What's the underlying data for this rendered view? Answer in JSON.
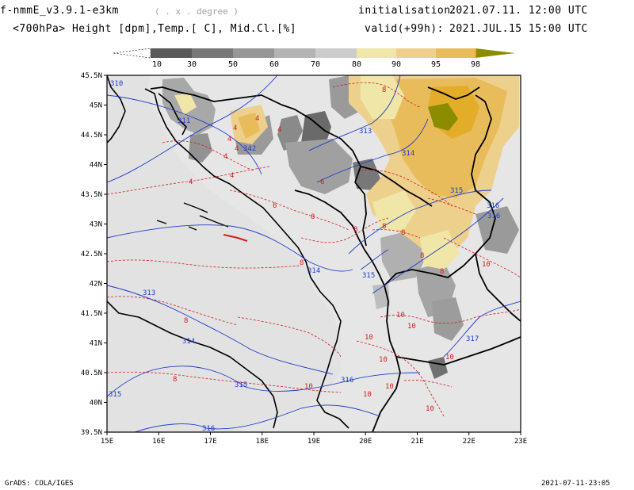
{
  "header": {
    "model": "f-nmmE_v3.9.1-e3km",
    "units_hint": "( . x . degree )",
    "init_label": "initialisation:",
    "init_value": "2021.07.11.  12:00 UTC",
    "subtitle": "<700hPa> Height [dpm],Temp.[ C], Mid.Cl.[%]",
    "valid_label": "valid(+99h):",
    "valid_value": "2021.JUL.15 15:00 UTC"
  },
  "colorbar": {
    "ticks": [
      "10",
      "30",
      "50",
      "60",
      "70",
      "80",
      "90",
      "95",
      "98"
    ],
    "colors": [
      "#5a5a5a",
      "#787878",
      "#969696",
      "#b4b4b4",
      "#cccccc",
      "#efe6a8",
      "#edd08c",
      "#e8bc5a",
      "#e3ad2a",
      "#8c8c00"
    ]
  },
  "axes": {
    "lat_labels": [
      "45.5N",
      "45N",
      "44.5N",
      "44N",
      "43.5N",
      "43N",
      "42.5N",
      "42N",
      "41.5N",
      "41N",
      "40.5N",
      "40N",
      "39.5N"
    ],
    "lon_labels": [
      "15E",
      "16E",
      "17E",
      "18E",
      "19E",
      "20E",
      "21E",
      "22E",
      "23E"
    ],
    "lat_range": [
      39.5,
      45.5
    ],
    "lon_range": [
      15,
      23
    ]
  },
  "height_labels": [
    "310",
    "311",
    "313",
    "314",
    "315",
    "316",
    "313",
    "314",
    "315",
    "316",
    "314",
    "315",
    "316",
    "315",
    "316",
    "317",
    "342"
  ],
  "temp_labels": [
    "4",
    "4",
    "4",
    "4",
    "4",
    "4",
    "4",
    "4",
    "6",
    "6",
    "8",
    "8",
    "8",
    "8",
    "8",
    "8",
    "8",
    "8",
    "8",
    "8",
    "10",
    "10",
    "10",
    "10",
    "10",
    "10",
    "10",
    "10",
    "10",
    "10"
  ],
  "footer": {
    "left": "GrADS: COLA/IGES",
    "right": "2021-07-11-23:05"
  },
  "colors": {
    "height_contour": "#1e3cc8",
    "temp_contour": "#d02020",
    "land_background": "#e6e6e6",
    "coast": "#000000"
  }
}
